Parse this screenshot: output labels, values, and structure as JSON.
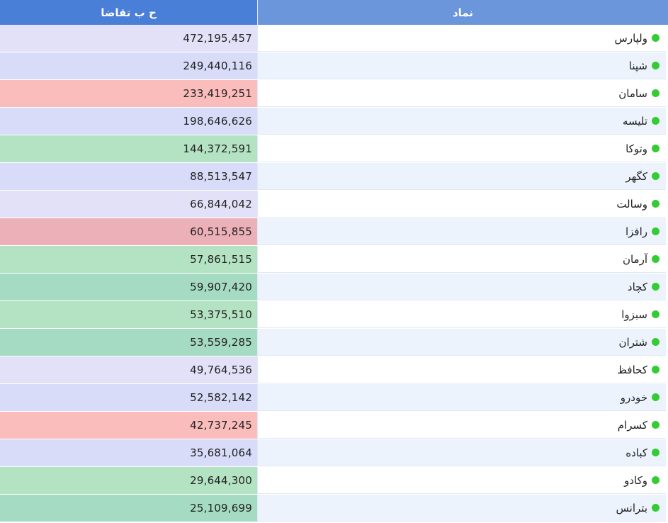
{
  "header": {
    "demand_label": "ح ب تقاضا",
    "symbol_label": "نماد"
  },
  "colors": {
    "status_dot": "#33cc33",
    "lavender": "#e3e1f8",
    "periwinkle": "#d8dcf8",
    "salmon": "#fbbcbc",
    "pink": "#ecb0b8",
    "green": "#b4e3c3",
    "teal_green": "#a5dbc2",
    "row_white": "#ffffff",
    "row_blue": "#edf3fd"
  },
  "rows": [
    {
      "symbol": "ولپارس",
      "value": "472,195,457",
      "value_color": "lavender",
      "row_color": "row_white"
    },
    {
      "symbol": "شپنا",
      "value": "249,440,116",
      "value_color": "periwinkle",
      "row_color": "row_blue"
    },
    {
      "symbol": "سامان",
      "value": "233,419,251",
      "value_color": "salmon",
      "row_color": "row_white"
    },
    {
      "symbol": "تلیسه",
      "value": "198,646,626",
      "value_color": "periwinkle",
      "row_color": "row_blue"
    },
    {
      "symbol": "وتوکا",
      "value": "144,372,591",
      "value_color": "green",
      "row_color": "row_white"
    },
    {
      "symbol": "کگهر",
      "value": "88,513,547",
      "value_color": "periwinkle",
      "row_color": "row_blue"
    },
    {
      "symbol": "وسالت",
      "value": "66,844,042",
      "value_color": "lavender",
      "row_color": "row_white"
    },
    {
      "symbol": "رافزا",
      "value": "60,515,855",
      "value_color": "pink",
      "row_color": "row_blue"
    },
    {
      "symbol": "آرمان",
      "value": "57,861,515",
      "value_color": "green",
      "row_color": "row_white"
    },
    {
      "symbol": "کچاد",
      "value": "59,907,420",
      "value_color": "teal_green",
      "row_color": "row_blue"
    },
    {
      "symbol": "سبزوا",
      "value": "53,375,510",
      "value_color": "green",
      "row_color": "row_white"
    },
    {
      "symbol": "شتران",
      "value": "53,559,285",
      "value_color": "teal_green",
      "row_color": "row_blue"
    },
    {
      "symbol": "کحافظ",
      "value": "49,764,536",
      "value_color": "lavender",
      "row_color": "row_white"
    },
    {
      "symbol": "خودرو",
      "value": "52,582,142",
      "value_color": "periwinkle",
      "row_color": "row_blue"
    },
    {
      "symbol": "کسرام",
      "value": "42,737,245",
      "value_color": "salmon",
      "row_color": "row_white"
    },
    {
      "symbol": "کباده",
      "value": "35,681,064",
      "value_color": "periwinkle",
      "row_color": "row_blue"
    },
    {
      "symbol": "وکادو",
      "value": "29,644,300",
      "value_color": "green",
      "row_color": "row_white"
    },
    {
      "symbol": "بترانس",
      "value": "25,109,699",
      "value_color": "teal_green",
      "row_color": "row_blue"
    }
  ]
}
